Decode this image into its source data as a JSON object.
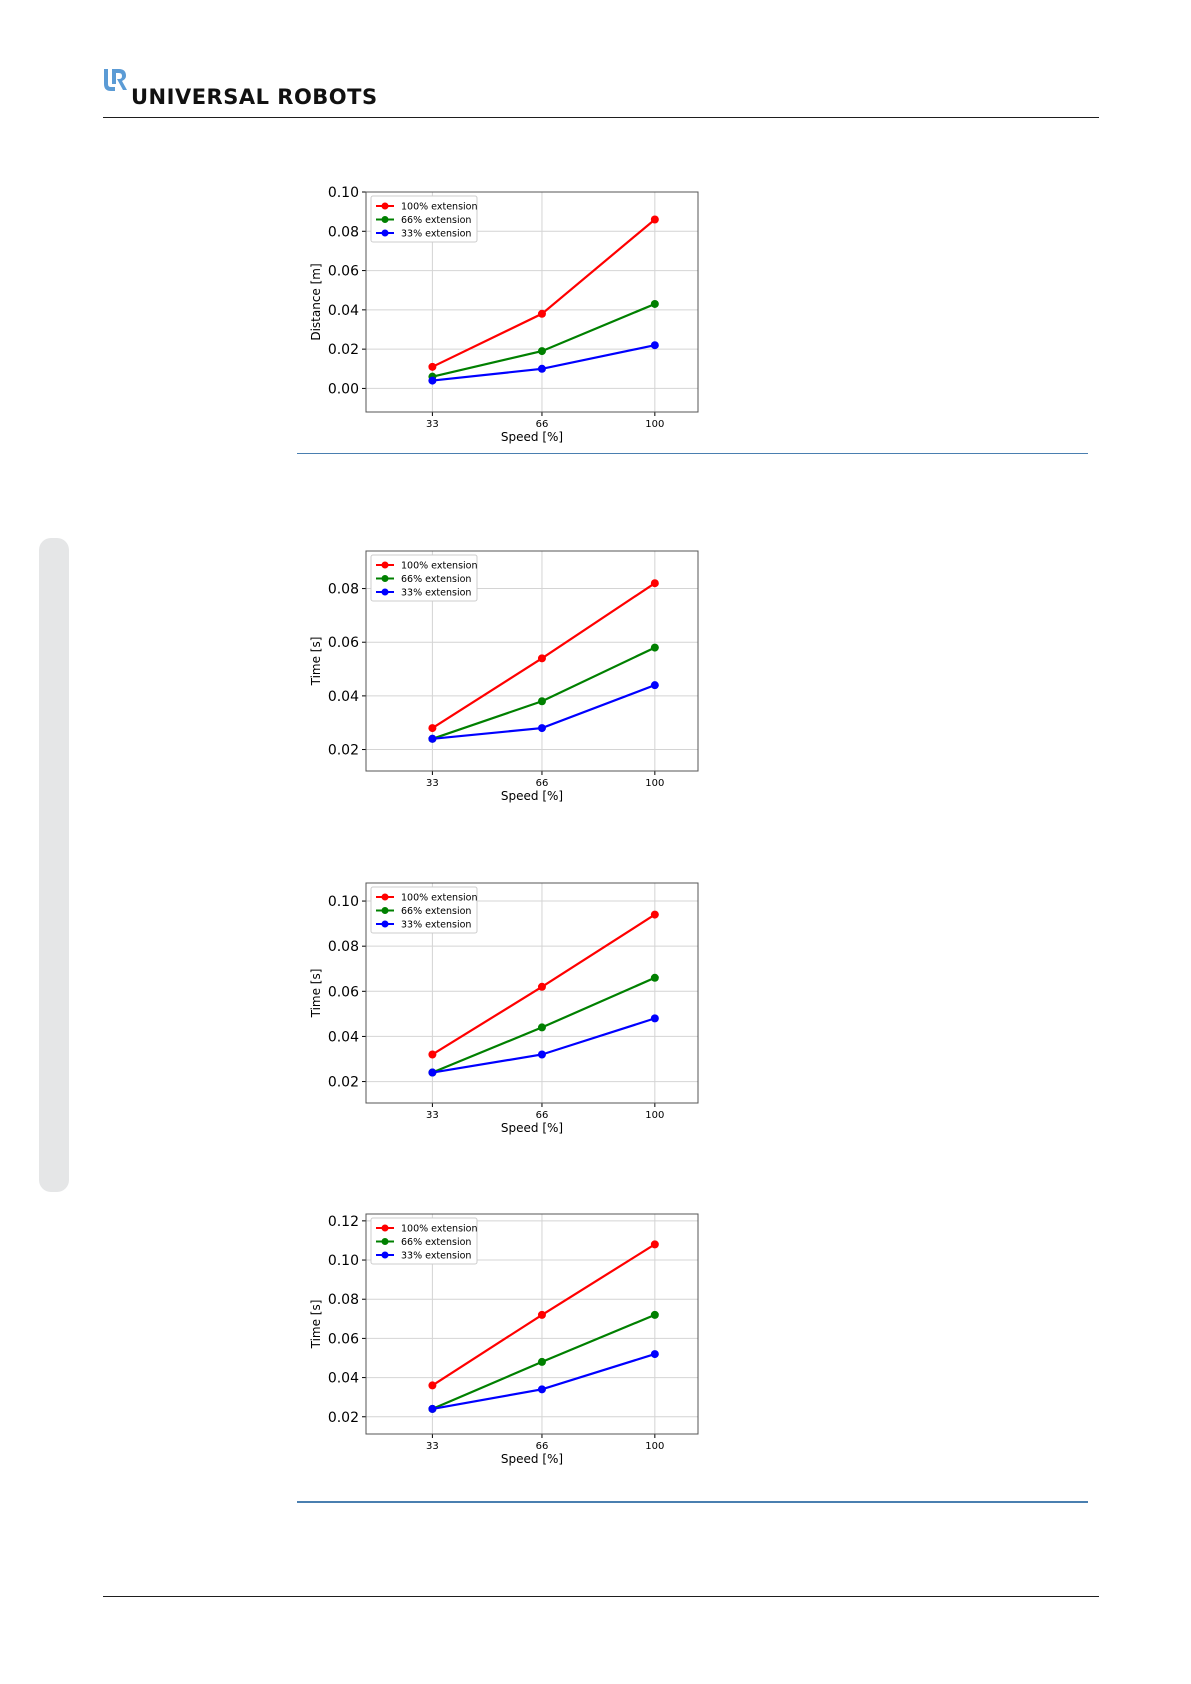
{
  "header": {
    "brand_name": "UNIVERSAL ROBOTS",
    "logo_icon": "ur-logo-icon",
    "accent_color": "#5b9bd5"
  },
  "series_colors": [
    "#ff0000",
    "#008000",
    "#0000ff"
  ],
  "chart_data": [
    {
      "type": "line",
      "x": [
        33,
        66,
        100
      ],
      "xlabel": "Speed [%]",
      "ylabel": "Distance [m]",
      "ylim": [
        -0.012,
        0.1
      ],
      "yticks": [
        "0.10",
        "0.08",
        "0.06",
        "0.04",
        "0.02",
        "0.00"
      ],
      "ytick_values": [
        0.1,
        0.08,
        0.06,
        0.04,
        0.02,
        0.0
      ],
      "grid": true,
      "legend": "top-left",
      "series": [
        {
          "name": "100% extension",
          "values": [
            0.011,
            0.038,
            0.086
          ]
        },
        {
          "name": "66% extension",
          "values": [
            0.006,
            0.019,
            0.043
          ]
        },
        {
          "name": "33% extension",
          "values": [
            0.004,
            0.01,
            0.022
          ]
        }
      ]
    },
    {
      "type": "line",
      "x": [
        33,
        66,
        100
      ],
      "xlabel": "Speed [%]",
      "ylabel": "Time [s]",
      "ylim": [
        0.012,
        0.094
      ],
      "yticks": [
        "0.08",
        "0.06",
        "0.04",
        "0.02"
      ],
      "ytick_values": [
        0.08,
        0.06,
        0.04,
        0.02
      ],
      "grid": true,
      "legend": "top-left",
      "series": [
        {
          "name": "100% extension",
          "values": [
            0.028,
            0.054,
            0.082
          ]
        },
        {
          "name": "66% extension",
          "values": [
            0.024,
            0.038,
            0.058
          ]
        },
        {
          "name": "33% extension",
          "values": [
            0.024,
            0.028,
            0.044
          ]
        }
      ]
    },
    {
      "type": "line",
      "x": [
        33,
        66,
        100
      ],
      "xlabel": "Speed [%]",
      "ylabel": "Time [s]",
      "ylim": [
        0.0105,
        0.108
      ],
      "yticks": [
        "0.10",
        "0.08",
        "0.06",
        "0.04",
        "0.02"
      ],
      "ytick_values": [
        0.1,
        0.08,
        0.06,
        0.04,
        0.02
      ],
      "grid": true,
      "legend": "top-left",
      "series": [
        {
          "name": "100% extension",
          "values": [
            0.032,
            0.062,
            0.094
          ]
        },
        {
          "name": "66% extension",
          "values": [
            0.024,
            0.044,
            0.066
          ]
        },
        {
          "name": "33% extension",
          "values": [
            0.024,
            0.032,
            0.048
          ]
        }
      ]
    },
    {
      "type": "line",
      "x": [
        33,
        66,
        100
      ],
      "xlabel": "Speed [%]",
      "ylabel": "Time [s]",
      "ylim": [
        0.0112,
        0.1235
      ],
      "yticks": [
        "0.12",
        "0.10",
        "0.08",
        "0.06",
        "0.04",
        "0.02"
      ],
      "ytick_values": [
        0.12,
        0.1,
        0.08,
        0.06,
        0.04,
        0.02
      ],
      "grid": true,
      "legend": "top-left",
      "series": [
        {
          "name": "100% extension",
          "values": [
            0.036,
            0.072,
            0.108
          ]
        },
        {
          "name": "66% extension",
          "values": [
            0.024,
            0.048,
            0.072
          ]
        },
        {
          "name": "33% extension",
          "values": [
            0.024,
            0.034,
            0.052
          ]
        }
      ]
    }
  ]
}
